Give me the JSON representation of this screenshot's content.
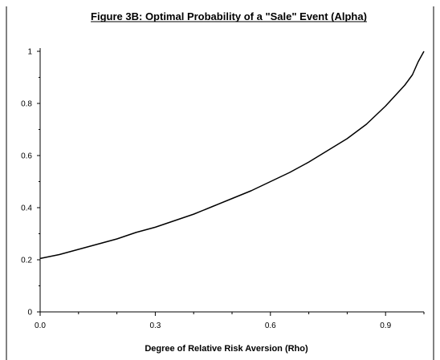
{
  "chart_data": {
    "type": "line",
    "title": "Figure 3B: Optimal Probability of a \"Sale\" Event (Alpha)",
    "xlabel": "Degree of Relative Risk Aversion (Rho)",
    "ylabel": "",
    "xlim": [
      0.0,
      1.0
    ],
    "ylim": [
      0,
      1
    ],
    "x_ticks": [
      0.0,
      0.3,
      0.6,
      0.9
    ],
    "x_tick_labels": [
      "0.0",
      "0.3",
      "0.6",
      "0.9"
    ],
    "y_ticks": [
      0,
      0.2,
      0.4,
      0.6,
      0.8,
      1
    ],
    "y_tick_labels": [
      "0",
      "0.2",
      "0.4",
      "0.6",
      "0.8",
      "1"
    ],
    "x_minor_ticks": [
      0.1,
      0.2,
      0.4,
      0.5,
      0.7,
      0.8,
      1.0
    ],
    "y_minor_ticks": [
      0.1,
      0.3,
      0.5,
      0.7,
      0.9
    ],
    "grid": false,
    "legend": "none",
    "line_color": "#000000",
    "series": [
      {
        "x": [
          0.0,
          0.05,
          0.1,
          0.15,
          0.2,
          0.25,
          0.3,
          0.35,
          0.4,
          0.45,
          0.5,
          0.55,
          0.6,
          0.65,
          0.7,
          0.75,
          0.8,
          0.85,
          0.9,
          0.925,
          0.95,
          0.97,
          0.985,
          1.0
        ],
        "y": [
          0.205,
          0.22,
          0.24,
          0.26,
          0.28,
          0.305,
          0.325,
          0.35,
          0.375,
          0.405,
          0.435,
          0.465,
          0.5,
          0.535,
          0.575,
          0.62,
          0.665,
          0.72,
          0.79,
          0.83,
          0.87,
          0.91,
          0.96,
          1.0
        ]
      }
    ]
  }
}
